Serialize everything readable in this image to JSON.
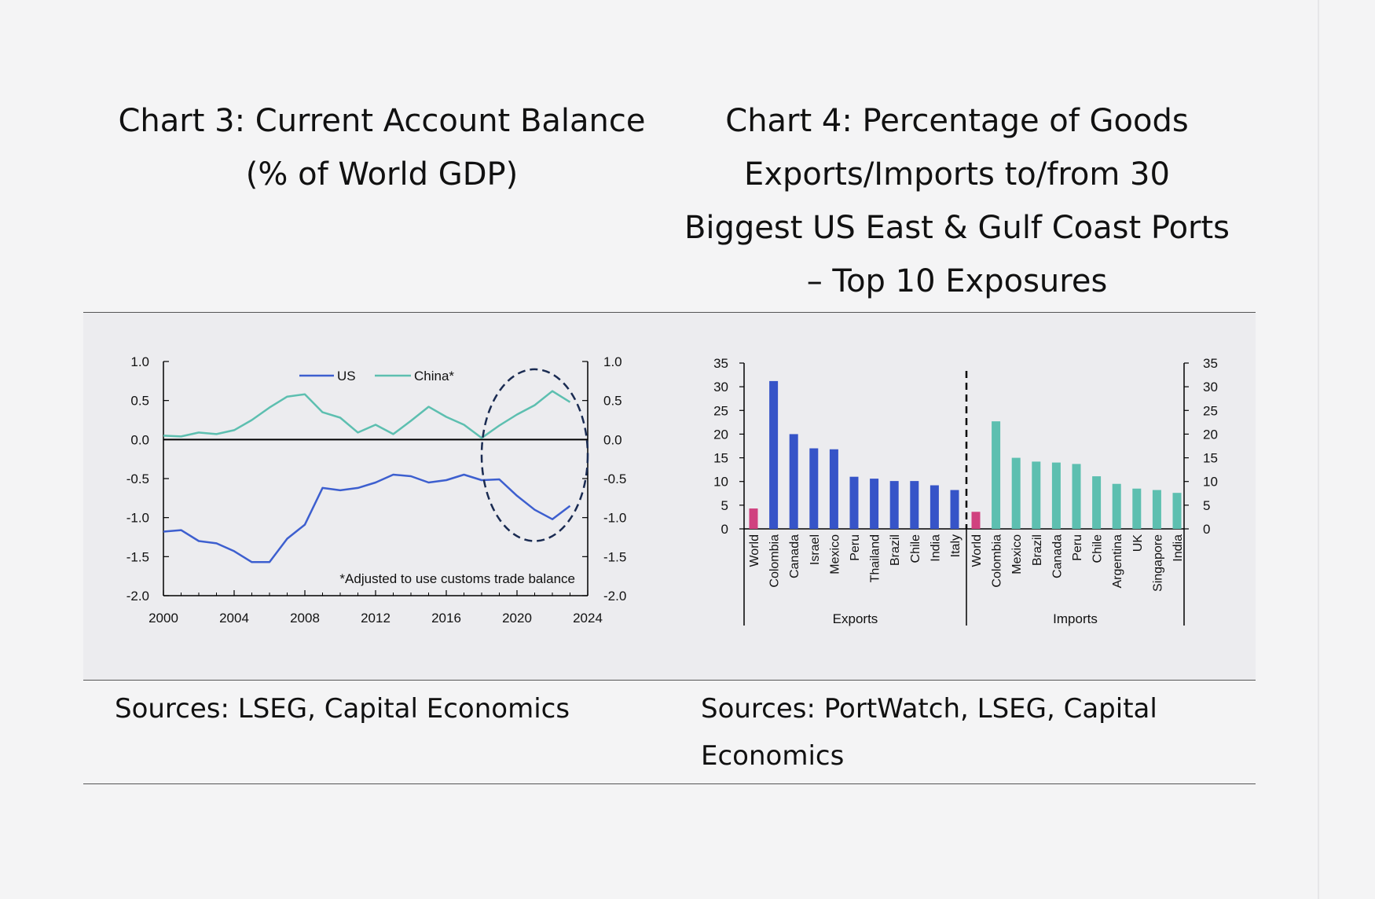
{
  "chart3": {
    "title_line1": "Chart 3: Current Account Balance",
    "title_line2": "(% of World GDP)",
    "source": "Sources: LSEG, Capital Economics"
  },
  "chart4": {
    "title_line1": "Chart 4: Percentage of Goods",
    "title_line2": "Exports/Imports to/from 30",
    "title_line3": "Biggest US East & Gulf Coast Ports",
    "title_line4": "– Top 10 Exposures",
    "source_line1": "Sources: PortWatch, LSEG, Capital",
    "source_line2": "Economics"
  },
  "colors": {
    "us": "#3d5fcf",
    "china": "#5dbfb0",
    "exports_bar": "#3654c8",
    "imports_bar": "#5dbfb0",
    "world_bar": "#d0417f",
    "ellipse": "#1a2b52"
  },
  "chart_data": [
    {
      "type": "line",
      "title": "Chart 3: Current Account Balance (% of World GDP)",
      "x": [
        2000,
        2001,
        2002,
        2003,
        2004,
        2005,
        2006,
        2007,
        2008,
        2009,
        2010,
        2011,
        2012,
        2013,
        2014,
        2015,
        2016,
        2017,
        2018,
        2019,
        2020,
        2021,
        2022,
        2023
      ],
      "series": [
        {
          "name": "US",
          "values": [
            -1.18,
            -1.16,
            -1.3,
            -1.33,
            -1.43,
            -1.57,
            -1.57,
            -1.27,
            -1.09,
            -0.62,
            -0.65,
            -0.62,
            -0.55,
            -0.45,
            -0.47,
            -0.55,
            -0.52,
            -0.45,
            -0.52,
            -0.51,
            -0.72,
            -0.9,
            -1.02,
            -0.85
          ]
        },
        {
          "name": "China*",
          "values": [
            0.05,
            0.04,
            0.09,
            0.07,
            0.12,
            0.25,
            0.41,
            0.55,
            0.58,
            0.35,
            0.28,
            0.09,
            0.19,
            0.07,
            0.24,
            0.42,
            0.29,
            0.19,
            0.02,
            0.18,
            0.32,
            0.44,
            0.62,
            0.48
          ]
        }
      ],
      "xticks": [
        "2000",
        "2004",
        "2008",
        "2012",
        "2016",
        "2020",
        "2024"
      ],
      "xlim": [
        2000,
        2024
      ],
      "ylim": [
        -2.0,
        1.0
      ],
      "yticks": [
        "1.0",
        "0.5",
        "0.0",
        "-0.5",
        "-1.0",
        "-1.5",
        "-2.0"
      ],
      "legend": "top-center",
      "annotation": "*Adjusted to use customs trade balance",
      "highlight": {
        "x": [
          2018,
          2024
        ],
        "y": [
          -1.3,
          0.9
        ]
      }
    },
    {
      "type": "bar",
      "title": "Chart 4: Percentage of Goods Exports/Imports to/from 30 Biggest US East & Gulf Coast Ports – Top 10 Exposures",
      "groups": [
        {
          "label": "Exports",
          "categories": [
            "World",
            "Colombia",
            "Canada",
            "Israel",
            "Mexico",
            "Peru",
            "Thailand",
            "Brazil",
            "Chile",
            "India",
            "Italy"
          ],
          "values": [
            4.3,
            31.2,
            20.0,
            17.0,
            16.8,
            11.0,
            10.6,
            10.1,
            10.1,
            9.2,
            8.2
          ]
        },
        {
          "label": "Imports",
          "categories": [
            "World",
            "Colombia",
            "Mexico",
            "Brazil",
            "Canada",
            "Peru",
            "Chile",
            "Argentina",
            "UK",
            "Singapore",
            "India"
          ],
          "values": [
            3.6,
            22.7,
            15.0,
            14.2,
            14.0,
            13.7,
            11.1,
            9.5,
            8.5,
            8.2,
            7.6
          ]
        }
      ],
      "ylim": [
        0,
        35
      ],
      "yticks": [
        "35",
        "30",
        "25",
        "20",
        "15",
        "10",
        "5",
        "0"
      ]
    }
  ]
}
